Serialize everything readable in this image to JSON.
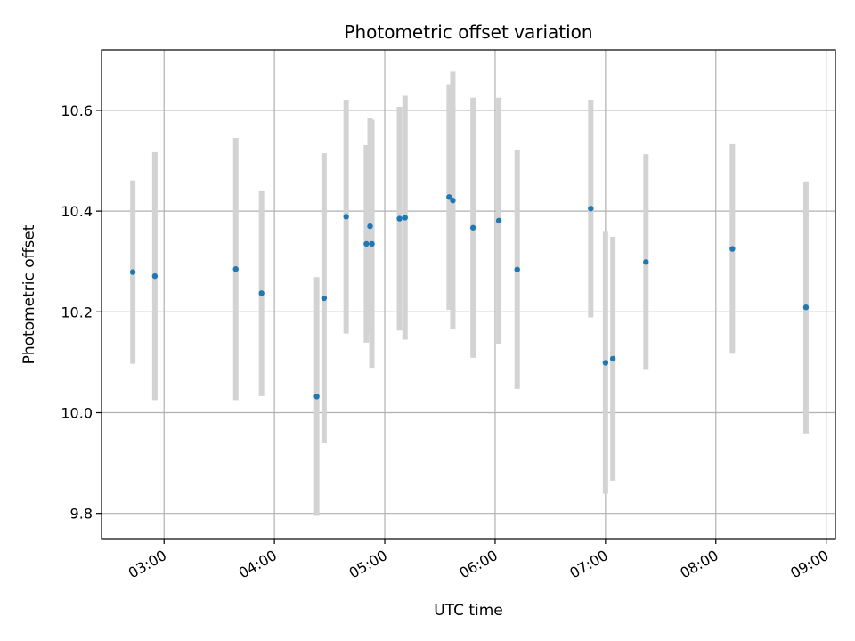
{
  "chart_data": {
    "type": "scatter",
    "title": "Photometric offset variation",
    "xlabel": "UTC time",
    "ylabel": "Photometric offset",
    "grid": true,
    "x_unit": "UTC time (HH:MM)",
    "xlim": [
      "02:26",
      "09:05"
    ],
    "ylim": [
      9.75,
      10.72
    ],
    "x_ticks": [
      "03:00",
      "04:00",
      "05:00",
      "06:00",
      "07:00",
      "08:00",
      "09:00"
    ],
    "y_ticks": [
      9.8,
      10.0,
      10.2,
      10.4,
      10.6
    ],
    "y_tick_labels": [
      "9.8",
      "10.0",
      "10.2",
      "10.4",
      "10.6"
    ],
    "point_color": "#1f77b4",
    "errorbar_color": "#d3d3d3",
    "points": [
      {
        "x": "02:43",
        "y": 10.279,
        "ylow": 10.097,
        "yhigh": 10.461
      },
      {
        "x": "02:55",
        "y": 10.271,
        "ylow": 10.025,
        "yhigh": 10.517
      },
      {
        "x": "03:39",
        "y": 10.285,
        "ylow": 10.025,
        "yhigh": 10.545
      },
      {
        "x": "03:53",
        "y": 10.237,
        "ylow": 10.033,
        "yhigh": 10.441
      },
      {
        "x": "04:23",
        "y": 10.032,
        "ylow": 9.795,
        "yhigh": 10.269
      },
      {
        "x": "04:27",
        "y": 10.227,
        "ylow": 9.939,
        "yhigh": 10.515
      },
      {
        "x": "04:39",
        "y": 10.389,
        "ylow": 10.157,
        "yhigh": 10.621
      },
      {
        "x": "04:50",
        "y": 10.335,
        "ylow": 10.139,
        "yhigh": 10.531
      },
      {
        "x": "04:52",
        "y": 10.37,
        "ylow": 10.156,
        "yhigh": 10.584
      },
      {
        "x": "04:53",
        "y": 10.335,
        "ylow": 10.089,
        "yhigh": 10.581
      },
      {
        "x": "05:08",
        "y": 10.385,
        "ylow": 10.163,
        "yhigh": 10.607
      },
      {
        "x": "05:11",
        "y": 10.387,
        "ylow": 10.145,
        "yhigh": 10.629
      },
      {
        "x": "05:35",
        "y": 10.428,
        "ylow": 10.204,
        "yhigh": 10.652
      },
      {
        "x": "05:37",
        "y": 10.421,
        "ylow": 10.165,
        "yhigh": 10.677
      },
      {
        "x": "05:48",
        "y": 10.367,
        "ylow": 10.109,
        "yhigh": 10.625
      },
      {
        "x": "06:02",
        "y": 10.381,
        "ylow": 10.137,
        "yhigh": 10.625
      },
      {
        "x": "06:12",
        "y": 10.284,
        "ylow": 10.047,
        "yhigh": 10.521
      },
      {
        "x": "06:52",
        "y": 10.405,
        "ylow": 10.189,
        "yhigh": 10.621
      },
      {
        "x": "07:00",
        "y": 10.099,
        "ylow": 9.839,
        "yhigh": 10.359
      },
      {
        "x": "07:04",
        "y": 10.107,
        "ylow": 9.865,
        "yhigh": 10.349
      },
      {
        "x": "07:22",
        "y": 10.299,
        "ylow": 10.085,
        "yhigh": 10.513
      },
      {
        "x": "08:09",
        "y": 10.325,
        "ylow": 10.117,
        "yhigh": 10.533
      },
      {
        "x": "08:49",
        "y": 10.209,
        "ylow": 9.959,
        "yhigh": 10.459
      }
    ]
  }
}
